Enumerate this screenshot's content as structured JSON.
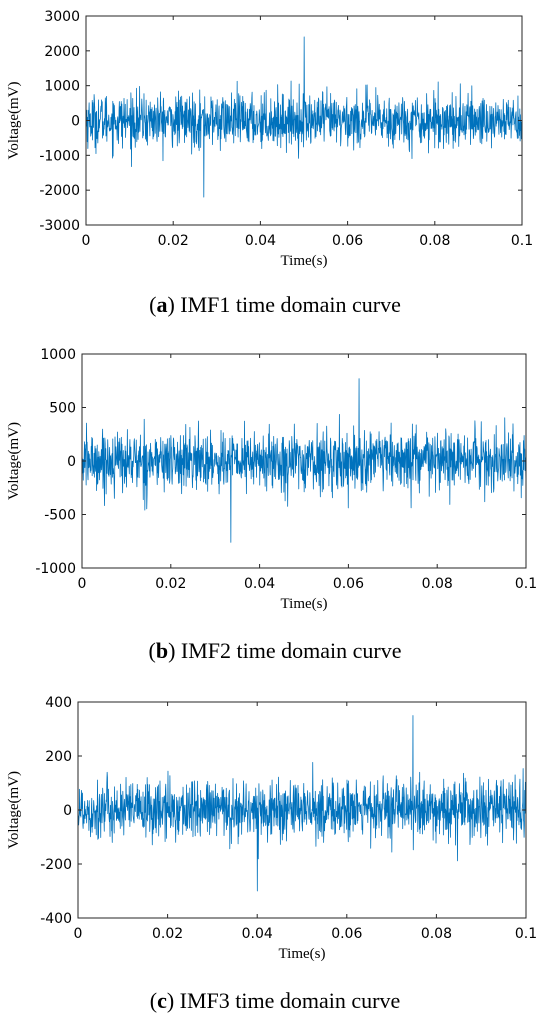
{
  "chart_data": [
    {
      "type": "line",
      "panel_letter": "a",
      "caption": "IMF1 time domain curve",
      "xlabel": "Time(s)",
      "ylabel": "Voltage(mV)",
      "xlim": [
        0,
        0.1
      ],
      "ylim": [
        -3000,
        3000
      ],
      "xticks": [
        "0",
        "0.02",
        "0.04",
        "0.06",
        "0.08",
        "0.1"
      ],
      "yticks": [
        "3000",
        "2000",
        "1000",
        "0",
        "-1000",
        "-2000",
        "-3000"
      ],
      "series_color": "#0072BD",
      "signal": {
        "mean": 0,
        "typical_amplitude": 900,
        "max": 2400,
        "min": -2200
      }
    },
    {
      "type": "line",
      "panel_letter": "b",
      "caption": "IMF2 time domain curve",
      "xlabel": "Time(s)",
      "ylabel": "Voltage(mV)",
      "xlim": [
        0,
        0.1
      ],
      "ylim": [
        -1000,
        1000
      ],
      "xticks": [
        "0",
        "0.02",
        "0.04",
        "0.06",
        "0.08",
        "0.1"
      ],
      "yticks": [
        "1000",
        "500",
        "0",
        "-500",
        "-1000"
      ],
      "series_color": "#0072BD",
      "signal": {
        "mean": 0,
        "typical_amplitude": 330,
        "max": 770,
        "min": -760
      }
    },
    {
      "type": "line",
      "panel_letter": "c",
      "caption": "IMF3 time domain curve",
      "xlabel": "Time(s)",
      "ylabel": "Voltage(mV)",
      "xlim": [
        0,
        0.1
      ],
      "ylim": [
        -400,
        400
      ],
      "xticks": [
        "0",
        "0.02",
        "0.04",
        "0.06",
        "0.08",
        "0.1"
      ],
      "yticks": [
        "400",
        "200",
        "0",
        "-200",
        "-400"
      ],
      "series_color": "#0072BD",
      "signal": {
        "mean": 0,
        "typical_amplitude": 130,
        "max": 350,
        "min": -300
      }
    }
  ]
}
